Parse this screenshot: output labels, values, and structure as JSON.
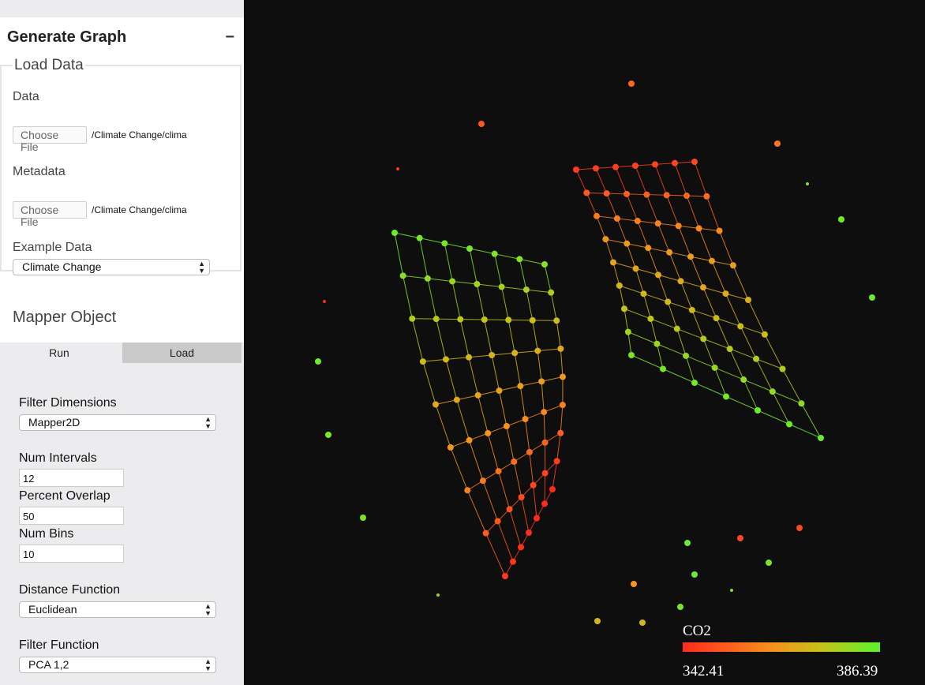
{
  "panel": {
    "title": "Generate Graph",
    "collapse": "−"
  },
  "load_data": {
    "legend": "Load Data",
    "data_label": "Data",
    "data_button": "Choose File",
    "data_path": "/Climate Change/clima",
    "metadata_label": "Metadata",
    "metadata_button": "Choose File",
    "metadata_path": "/Climate Change/clima",
    "example_label": "Example Data",
    "example_value": "Climate Change"
  },
  "mapper": {
    "title": "Mapper Object",
    "tabs": [
      "Run",
      "Load"
    ],
    "filter_dimensions_label": "Filter Dimensions",
    "filter_dimensions_value": "Mapper2D",
    "num_intervals_label": "Num Intervals",
    "num_intervals_value": "12",
    "percent_overlap_label": "Percent Overlap",
    "percent_overlap_value": "50",
    "num_bins_label": "Num Bins",
    "num_bins_value": "10",
    "distance_label": "Distance Function",
    "distance_value": "Euclidean",
    "filter_function_label": "Filter Function",
    "filter_function_value": "PCA 1,2"
  },
  "colorbar": {
    "title": "CO2",
    "min": "342.41",
    "max": "386.39",
    "colors": [
      "#ff2a1f",
      "#f7901e",
      "#c5c318",
      "#5cf22f"
    ]
  }
}
